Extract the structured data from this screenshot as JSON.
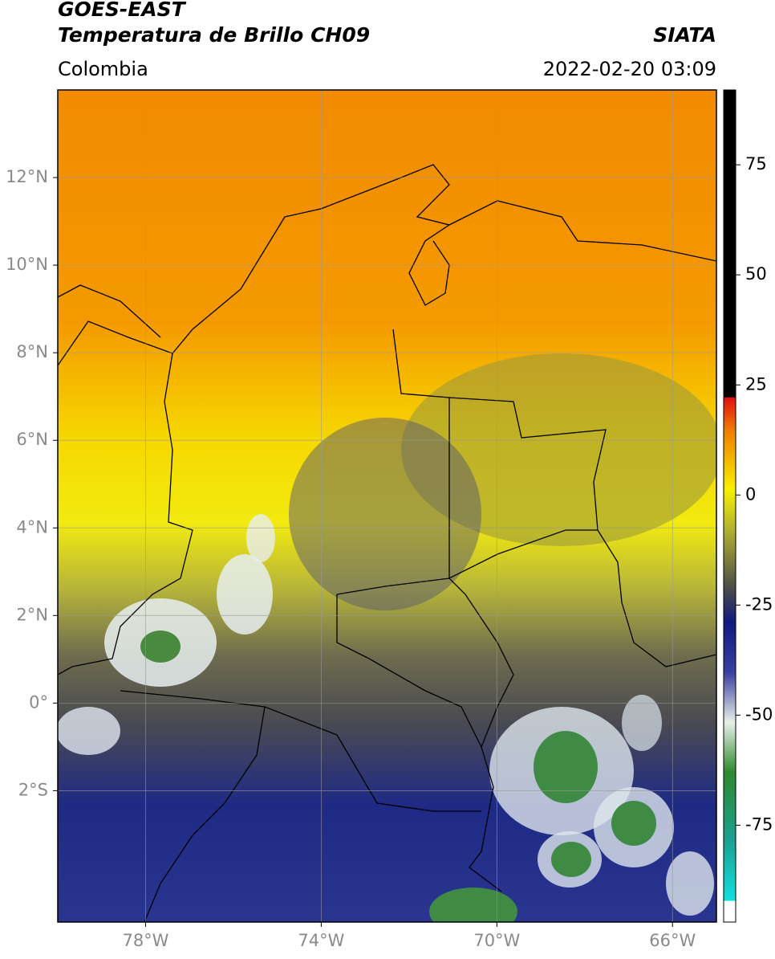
{
  "header": {
    "title": "GOES-EAST",
    "product": "Temperatura de Brillo CH09",
    "region": "Colombia",
    "source": "SIATA",
    "datetime": "2022-02-20 03:09"
  },
  "map": {
    "lonlim": [
      -80,
      -65
    ],
    "latlim": [
      -5,
      14
    ],
    "lon_ticks": [
      {
        "value": -78,
        "label": "78°W"
      },
      {
        "value": -74,
        "label": "74°W"
      },
      {
        "value": -70,
        "label": "70°W"
      },
      {
        "value": -66,
        "label": "66°W"
      }
    ],
    "lat_ticks": [
      {
        "value": 12,
        "label": "12°N"
      },
      {
        "value": 10,
        "label": "10°N"
      },
      {
        "value": 8,
        "label": "8°N"
      },
      {
        "value": 6,
        "label": "6°N"
      },
      {
        "value": 4,
        "label": "4°N"
      },
      {
        "value": 2,
        "label": "2°N"
      },
      {
        "value": 0,
        "label": "0°"
      },
      {
        "value": -2,
        "label": "2°S"
      }
    ]
  },
  "colorbar": {
    "lim": [
      -97,
      92
    ],
    "ticks": [
      75,
      50,
      25,
      0,
      -25,
      -50,
      -75
    ]
  }
}
